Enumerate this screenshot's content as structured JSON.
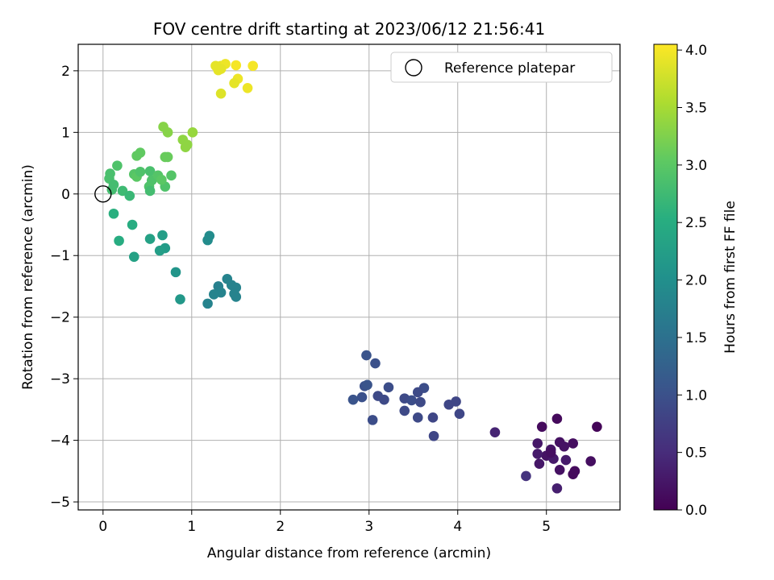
{
  "chart_data": {
    "type": "scatter",
    "title": "FOV centre drift starting at 2023/06/12 21:56:41",
    "xlabel": "Angular distance from reference (arcmin)",
    "ylabel": "Rotation from reference (arcmin)",
    "xlim": [
      -0.28,
      5.83
    ],
    "ylim": [
      -5.13,
      2.43
    ],
    "xticks": [
      0,
      1,
      2,
      3,
      4,
      5
    ],
    "yticks": [
      -5,
      -4,
      -3,
      -2,
      -1,
      0,
      1,
      2
    ],
    "xtick_labels": [
      "0",
      "1",
      "2",
      "3",
      "4",
      "5"
    ],
    "ytick_labels": [
      "−5",
      "−4",
      "−3",
      "−2",
      "−1",
      "0",
      "1",
      "2"
    ],
    "grid": true,
    "legend": {
      "placement": "top-right",
      "entries": [
        "Reference platepar"
      ]
    },
    "reference_point": {
      "x": 0,
      "y": 0
    },
    "colorbar": {
      "label": "Hours from first FF file",
      "colormap": "viridis",
      "range": [
        0.0,
        4.05
      ],
      "ticks": [
        0.0,
        0.5,
        1.0,
        1.5,
        2.0,
        2.5,
        3.0,
        3.5,
        4.0
      ],
      "tick_labels": [
        "0.0",
        "0.5",
        "1.0",
        "1.5",
        "2.0",
        "2.5",
        "3.0",
        "3.5",
        "4.0"
      ]
    },
    "points": [
      {
        "x": 5.57,
        "y": -3.78,
        "c": 0.05
      },
      {
        "x": 5.12,
        "y": -3.65,
        "c": 0.1
      },
      {
        "x": 4.95,
        "y": -3.78,
        "c": 0.12
      },
      {
        "x": 5.3,
        "y": -4.05,
        "c": 0.15
      },
      {
        "x": 5.15,
        "y": -4.03,
        "c": 0.18
      },
      {
        "x": 5.2,
        "y": -4.1,
        "c": 0.2
      },
      {
        "x": 5.05,
        "y": -4.15,
        "c": 0.22
      },
      {
        "x": 4.9,
        "y": -4.05,
        "c": 0.25
      },
      {
        "x": 5.0,
        "y": -4.25,
        "c": 0.2
      },
      {
        "x": 5.08,
        "y": -4.3,
        "c": 0.28
      },
      {
        "x": 5.22,
        "y": -4.32,
        "c": 0.3
      },
      {
        "x": 5.5,
        "y": -4.34,
        "c": 0.15
      },
      {
        "x": 5.32,
        "y": -4.5,
        "c": 0.12
      },
      {
        "x": 5.3,
        "y": -4.55,
        "c": 0.1
      },
      {
        "x": 5.15,
        "y": -4.48,
        "c": 0.18
      },
      {
        "x": 4.92,
        "y": -4.38,
        "c": 0.25
      },
      {
        "x": 4.9,
        "y": -4.22,
        "c": 0.3
      },
      {
        "x": 5.12,
        "y": -4.78,
        "c": 0.35
      },
      {
        "x": 4.77,
        "y": -4.58,
        "c": 0.6
      },
      {
        "x": 4.42,
        "y": -3.87,
        "c": 0.4
      },
      {
        "x": 5.05,
        "y": -4.2,
        "c": 0.15
      },
      {
        "x": 2.97,
        "y": -2.62,
        "c": 1.05
      },
      {
        "x": 3.07,
        "y": -2.75,
        "c": 1.0
      },
      {
        "x": 2.95,
        "y": -3.12,
        "c": 1.0
      },
      {
        "x": 2.98,
        "y": -3.1,
        "c": 1.05
      },
      {
        "x": 3.22,
        "y": -3.14,
        "c": 0.95
      },
      {
        "x": 3.62,
        "y": -3.15,
        "c": 0.95
      },
      {
        "x": 3.55,
        "y": -3.22,
        "c": 0.9
      },
      {
        "x": 3.1,
        "y": -3.28,
        "c": 0.9
      },
      {
        "x": 2.92,
        "y": -3.3,
        "c": 1.0
      },
      {
        "x": 2.82,
        "y": -3.34,
        "c": 1.05
      },
      {
        "x": 3.17,
        "y": -3.34,
        "c": 0.9
      },
      {
        "x": 3.4,
        "y": -3.32,
        "c": 0.9
      },
      {
        "x": 3.48,
        "y": -3.35,
        "c": 0.95
      },
      {
        "x": 3.58,
        "y": -3.38,
        "c": 0.9
      },
      {
        "x": 3.98,
        "y": -3.37,
        "c": 0.85
      },
      {
        "x": 3.9,
        "y": -3.42,
        "c": 0.85
      },
      {
        "x": 3.4,
        "y": -3.52,
        "c": 0.9
      },
      {
        "x": 4.02,
        "y": -3.57,
        "c": 0.85
      },
      {
        "x": 3.55,
        "y": -3.63,
        "c": 0.9
      },
      {
        "x": 3.72,
        "y": -3.63,
        "c": 0.85
      },
      {
        "x": 3.04,
        "y": -3.67,
        "c": 0.95
      },
      {
        "x": 3.73,
        "y": -3.93,
        "c": 0.85
      },
      {
        "x": 1.3,
        "y": -1.5,
        "c": 1.75
      },
      {
        "x": 1.4,
        "y": -1.38,
        "c": 1.8
      },
      {
        "x": 1.45,
        "y": -1.48,
        "c": 1.8
      },
      {
        "x": 1.5,
        "y": -1.52,
        "c": 1.8
      },
      {
        "x": 1.48,
        "y": -1.62,
        "c": 1.8
      },
      {
        "x": 1.5,
        "y": -1.67,
        "c": 1.8
      },
      {
        "x": 1.33,
        "y": -1.6,
        "c": 1.8
      },
      {
        "x": 1.25,
        "y": -1.63,
        "c": 1.8
      },
      {
        "x": 1.18,
        "y": -1.78,
        "c": 1.8
      },
      {
        "x": 1.2,
        "y": -0.68,
        "c": 1.95
      },
      {
        "x": 1.18,
        "y": -0.75,
        "c": 1.95
      },
      {
        "x": 0.82,
        "y": -1.27,
        "c": 2.1
      },
      {
        "x": 0.87,
        "y": -1.71,
        "c": 2.15
      },
      {
        "x": 0.12,
        "y": -0.32,
        "c": 2.55
      },
      {
        "x": 0.18,
        "y": -0.76,
        "c": 2.5
      },
      {
        "x": 0.35,
        "y": -1.02,
        "c": 2.3
      },
      {
        "x": 0.33,
        "y": -0.5,
        "c": 2.5
      },
      {
        "x": 0.53,
        "y": -0.73,
        "c": 2.3
      },
      {
        "x": 0.67,
        "y": -0.67,
        "c": 2.25
      },
      {
        "x": 0.7,
        "y": -0.88,
        "c": 2.2
      },
      {
        "x": 0.64,
        "y": -0.92,
        "c": 2.25
      },
      {
        "x": 0.08,
        "y": 0.33,
        "c": 2.85
      },
      {
        "x": 0.07,
        "y": 0.25,
        "c": 2.85
      },
      {
        "x": 0.1,
        "y": 0.07,
        "c": 2.8
      },
      {
        "x": 0.12,
        "y": 0.15,
        "c": 2.8
      },
      {
        "x": 0.22,
        "y": 0.05,
        "c": 2.75
      },
      {
        "x": 0.3,
        "y": -0.03,
        "c": 2.7
      },
      {
        "x": 0.16,
        "y": 0.46,
        "c": 2.9
      },
      {
        "x": 0.35,
        "y": 0.32,
        "c": 2.95
      },
      {
        "x": 0.38,
        "y": 0.28,
        "c": 3.0
      },
      {
        "x": 0.42,
        "y": 0.36,
        "c": 2.9
      },
      {
        "x": 0.53,
        "y": 0.37,
        "c": 2.85
      },
      {
        "x": 0.55,
        "y": 0.22,
        "c": 2.9
      },
      {
        "x": 0.62,
        "y": 0.3,
        "c": 2.95
      },
      {
        "x": 0.52,
        "y": 0.12,
        "c": 2.9
      },
      {
        "x": 0.53,
        "y": 0.05,
        "c": 2.8
      },
      {
        "x": 0.7,
        "y": 0.12,
        "c": 2.9
      },
      {
        "x": 0.66,
        "y": 0.23,
        "c": 3.0
      },
      {
        "x": 0.77,
        "y": 0.3,
        "c": 2.95
      },
      {
        "x": 0.38,
        "y": 0.62,
        "c": 3.05
      },
      {
        "x": 0.42,
        "y": 0.67,
        "c": 3.05
      },
      {
        "x": 0.7,
        "y": 0.6,
        "c": 3.1
      },
      {
        "x": 0.73,
        "y": 0.6,
        "c": 3.1
      },
      {
        "x": 0.68,
        "y": 1.09,
        "c": 3.3
      },
      {
        "x": 0.73,
        "y": 1.0,
        "c": 3.3
      },
      {
        "x": 0.9,
        "y": 0.88,
        "c": 3.35
      },
      {
        "x": 0.93,
        "y": 0.76,
        "c": 3.35
      },
      {
        "x": 0.95,
        "y": 0.8,
        "c": 3.35
      },
      {
        "x": 1.01,
        "y": 1.0,
        "c": 3.4
      },
      {
        "x": 1.27,
        "y": 2.08,
        "c": 3.9
      },
      {
        "x": 1.33,
        "y": 2.08,
        "c": 3.9
      },
      {
        "x": 1.38,
        "y": 2.11,
        "c": 3.95
      },
      {
        "x": 1.3,
        "y": 2.01,
        "c": 3.9
      },
      {
        "x": 1.33,
        "y": 2.03,
        "c": 3.9
      },
      {
        "x": 1.5,
        "y": 2.09,
        "c": 4.0
      },
      {
        "x": 1.69,
        "y": 2.08,
        "c": 4.0
      },
      {
        "x": 1.52,
        "y": 1.87,
        "c": 3.95
      },
      {
        "x": 1.48,
        "y": 1.8,
        "c": 3.9
      },
      {
        "x": 1.63,
        "y": 1.72,
        "c": 3.95
      },
      {
        "x": 1.33,
        "y": 1.63,
        "c": 3.85
      }
    ]
  }
}
